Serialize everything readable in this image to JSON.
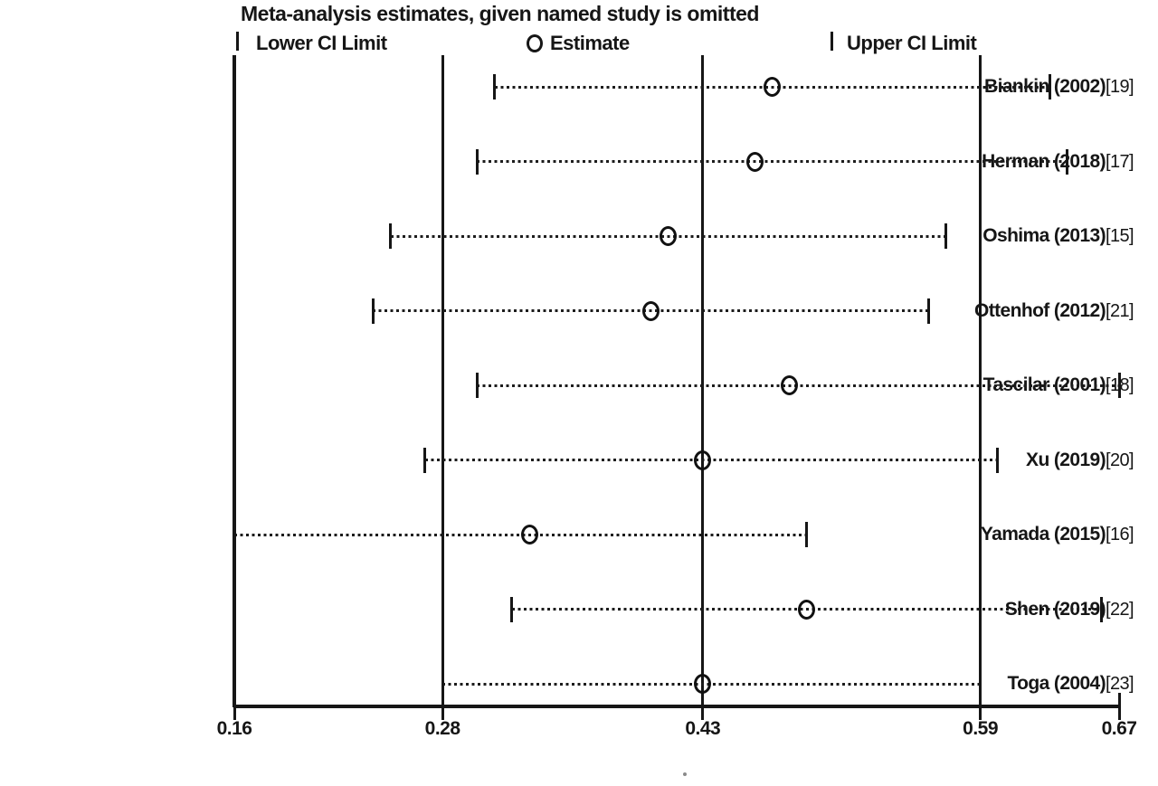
{
  "title": "Meta-analysis estimates, given named study is omitted",
  "legend": {
    "lower_label": "Lower CI Limit",
    "estimate_label": "Estimate",
    "upper_label": "Upper CI Limit"
  },
  "colors": {
    "line": "#161616",
    "text": "#161616",
    "background": "#ffffff"
  },
  "chart_data": {
    "type": "scatter",
    "subtype": "leave-one-out-forest-plot",
    "title": "Meta-analysis estimates, given named study is omitted",
    "xlabel": "",
    "ylabel": "",
    "xlim": [
      0.16,
      0.67
    ],
    "x_ticks": [
      0.16,
      0.28,
      0.43,
      0.59,
      0.67
    ],
    "x_tick_labels": [
      "0.16",
      "0.28",
      "0.43",
      "0.59",
      "0.67"
    ],
    "reference_lines": [
      0.28,
      0.43,
      0.59
    ],
    "grid": false,
    "legend_position": "top",
    "studies": [
      {
        "label": "Biankin (2002)",
        "ref": "[19]",
        "lower": 0.31,
        "estimate": 0.47,
        "upper": 0.63
      },
      {
        "label": "Herman (2018)",
        "ref": "[17]",
        "lower": 0.3,
        "estimate": 0.46,
        "upper": 0.64
      },
      {
        "label": "Oshima (2013)",
        "ref": "[15]",
        "lower": 0.25,
        "estimate": 0.41,
        "upper": 0.57
      },
      {
        "label": "Ottenhof (2012)",
        "ref": "[21]",
        "lower": 0.24,
        "estimate": 0.4,
        "upper": 0.56
      },
      {
        "label": "Tascilar (2001)",
        "ref": "[18]",
        "lower": 0.3,
        "estimate": 0.48,
        "upper": 0.67
      },
      {
        "label": "Xu (2019)",
        "ref": "[20]",
        "lower": 0.27,
        "estimate": 0.43,
        "upper": 0.6
      },
      {
        "label": "Yamada (2015)",
        "ref": "[16]",
        "lower": 0.16,
        "estimate": 0.33,
        "upper": 0.49
      },
      {
        "label": "Shen (2019)",
        "ref": "[22]",
        "lower": 0.32,
        "estimate": 0.49,
        "upper": 0.66
      },
      {
        "label": "Toga (2004)",
        "ref": "[23]",
        "lower": 0.28,
        "estimate": 0.43,
        "upper": 0.59
      }
    ]
  }
}
